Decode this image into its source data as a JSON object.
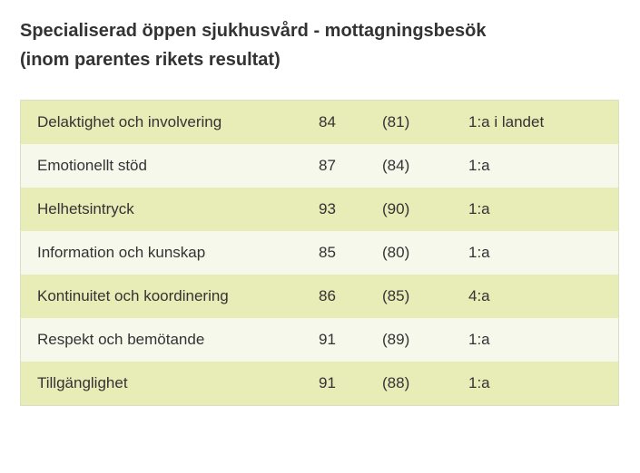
{
  "title_line1": "Specialiserad öppen sjukhusvård - mottagningsbesök",
  "title_line2": "(inom parentes rikets resultat)",
  "table": {
    "type": "table",
    "row_colors": [
      "#e8edb8",
      "#f7f8ec"
    ],
    "border_color": "#d9dfc5",
    "text_color": "#333333",
    "font_size_pt": 13,
    "rows": [
      {
        "label": "Delaktighet och involvering",
        "score": "84",
        "ref": "(81)",
        "rank": "1:a i landet"
      },
      {
        "label": "Emotionellt stöd",
        "score": "87",
        "ref": "(84)",
        "rank": "1:a"
      },
      {
        "label": "Helhetsintryck",
        "score": "93",
        "ref": "(90)",
        "rank": "1:a"
      },
      {
        "label": "Information och kunskap",
        "score": "85",
        "ref": "(80)",
        "rank": "1:a"
      },
      {
        "label": "Kontinuitet och koordinering",
        "score": "86",
        "ref": "(85)",
        "rank": "4:a"
      },
      {
        "label": "Respekt och bemötande",
        "score": "91",
        "ref": "(89)",
        "rank": "1:a"
      },
      {
        "label": "Tillgänglighet",
        "score": "91",
        "ref": "(88)",
        "rank": "1:a"
      }
    ]
  }
}
